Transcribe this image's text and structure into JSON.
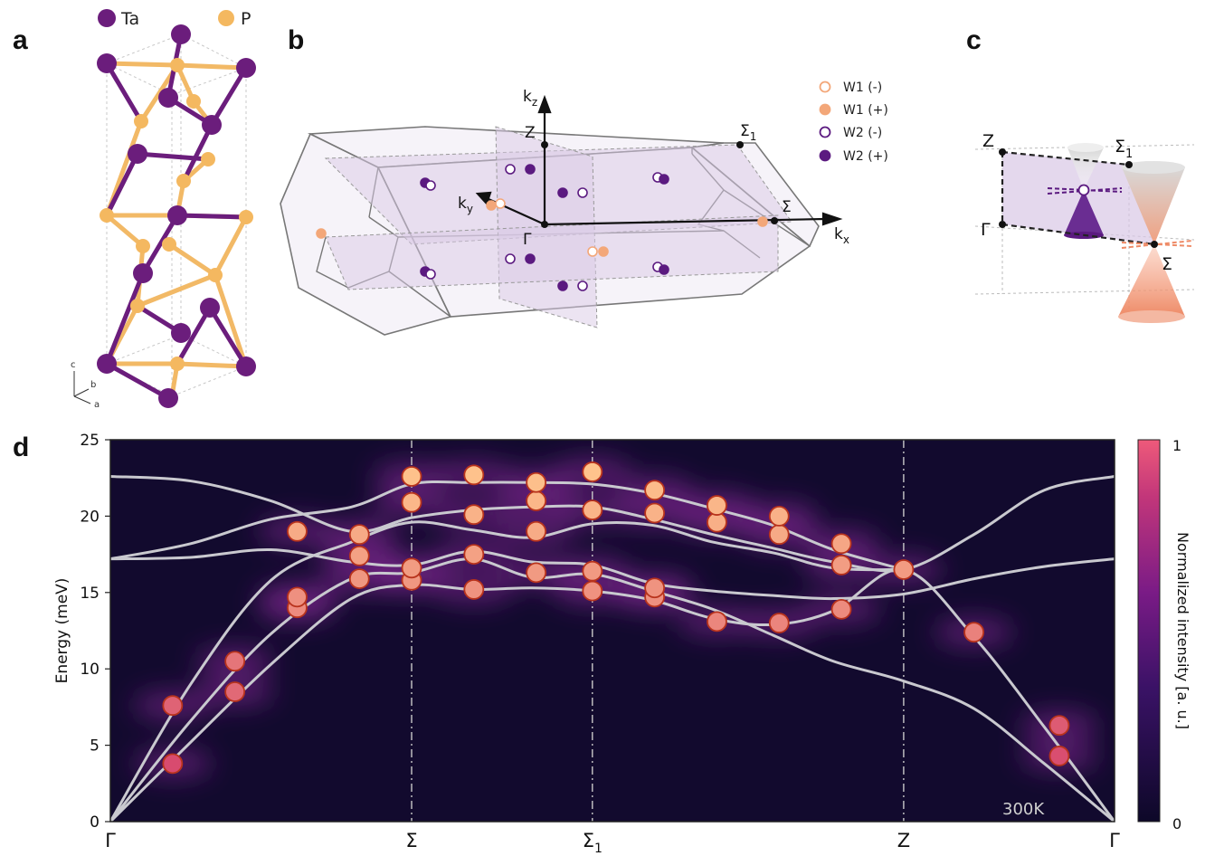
{
  "panel_labels": {
    "a": "a",
    "b": "b",
    "c": "c",
    "d": "d"
  },
  "panel_a": {
    "legend": [
      {
        "label": "Ta",
        "color": "#6b1d7c"
      },
      {
        "label": "P",
        "color": "#f4b860"
      }
    ],
    "axes": {
      "c": "c",
      "b": "b",
      "a": "a"
    }
  },
  "panel_b": {
    "labels": {
      "kz": "k",
      "kz_sub": "z",
      "ky": "k",
      "ky_sub": "y",
      "kx": "k",
      "kx_sub": "x",
      "Z": "Z",
      "Gamma": "Γ",
      "Sigma": "Σ",
      "Sigma1": "Σ",
      "Sigma1_sub": "1"
    },
    "legend": [
      {
        "label": "W1 (-)",
        "style": "open",
        "color": "#f3a779"
      },
      {
        "label": "W1 (+)",
        "style": "filled",
        "color": "#f3a779"
      },
      {
        "label": "W2 (-)",
        "style": "open",
        "color": "#5b1a80"
      },
      {
        "label": "W2 (+)",
        "style": "filled",
        "color": "#5b1a80"
      }
    ]
  },
  "panel_c": {
    "labels": {
      "Z": "Z",
      "Sigma1": "Σ",
      "Sigma1_sub": "1",
      "Gamma": "Γ",
      "Sigma": "Σ"
    }
  },
  "chart_data": {
    "type": "heatmap",
    "ylabel": "Energy (meV)",
    "ylim": [
      0,
      25
    ],
    "yticks": [
      0,
      5,
      10,
      15,
      20,
      25
    ],
    "xlim": [
      0,
      10
    ],
    "x_high_symmetry": [
      {
        "label": "Γ",
        "x": 0
      },
      {
        "label": "Σ",
        "x": 3
      },
      {
        "label": "Σ",
        "sub": "1",
        "x": 4.8
      },
      {
        "label": "Z",
        "x": 7.9
      },
      {
        "label": "Γ",
        "x": 10
      }
    ],
    "dashed_lines_at": [
      3,
      4.8,
      7.9
    ],
    "colorbar": {
      "label": "Normalized intensity [a. u.]",
      "min": "0",
      "max": "1"
    },
    "annotation": "300K",
    "points": [
      {
        "x": 0.62,
        "y": 3.8
      },
      {
        "x": 0.62,
        "y": 7.6
      },
      {
        "x": 1.24,
        "y": 8.5
      },
      {
        "x": 1.24,
        "y": 10.5
      },
      {
        "x": 1.86,
        "y": 14.0
      },
      {
        "x": 1.86,
        "y": 14.7
      },
      {
        "x": 1.86,
        "y": 19.0
      },
      {
        "x": 2.48,
        "y": 15.9
      },
      {
        "x": 2.48,
        "y": 17.4
      },
      {
        "x": 2.48,
        "y": 18.8
      },
      {
        "x": 3.0,
        "y": 15.8
      },
      {
        "x": 3.0,
        "y": 16.6
      },
      {
        "x": 3.0,
        "y": 20.9
      },
      {
        "x": 3.0,
        "y": 22.6
      },
      {
        "x": 3.62,
        "y": 15.2
      },
      {
        "x": 3.62,
        "y": 17.5
      },
      {
        "x": 3.62,
        "y": 20.1
      },
      {
        "x": 3.62,
        "y": 22.7
      },
      {
        "x": 4.24,
        "y": 16.3
      },
      {
        "x": 4.24,
        "y": 19.0
      },
      {
        "x": 4.24,
        "y": 21.0
      },
      {
        "x": 4.24,
        "y": 22.2
      },
      {
        "x": 4.8,
        "y": 15.1
      },
      {
        "x": 4.8,
        "y": 16.4
      },
      {
        "x": 4.8,
        "y": 20.4
      },
      {
        "x": 4.8,
        "y": 22.9
      },
      {
        "x": 5.42,
        "y": 14.7
      },
      {
        "x": 5.42,
        "y": 15.3
      },
      {
        "x": 5.42,
        "y": 20.2
      },
      {
        "x": 5.42,
        "y": 21.7
      },
      {
        "x": 6.04,
        "y": 13.1
      },
      {
        "x": 6.04,
        "y": 19.6
      },
      {
        "x": 6.04,
        "y": 20.7
      },
      {
        "x": 6.66,
        "y": 13.0
      },
      {
        "x": 6.66,
        "y": 18.8
      },
      {
        "x": 6.66,
        "y": 20.0
      },
      {
        "x": 7.28,
        "y": 13.9
      },
      {
        "x": 7.28,
        "y": 16.8
      },
      {
        "x": 7.28,
        "y": 18.2
      },
      {
        "x": 7.9,
        "y": 16.5
      },
      {
        "x": 8.6,
        "y": 12.4
      },
      {
        "x": 9.45,
        "y": 4.3
      },
      {
        "x": 9.45,
        "y": 6.3
      }
    ],
    "bands": [
      [
        [
          0,
          0
        ],
        [
          0.8,
          5.2
        ],
        [
          1.6,
          10.3
        ],
        [
          2.4,
          14.6
        ],
        [
          3.0,
          15.5
        ],
        [
          3.6,
          15.2
        ],
        [
          4.2,
          15.3
        ],
        [
          4.8,
          15.1
        ],
        [
          5.4,
          14.5
        ],
        [
          6.0,
          13.3
        ],
        [
          6.6,
          12.9
        ],
        [
          7.2,
          13.8
        ],
        [
          7.9,
          16.5
        ],
        [
          8.6,
          12.1
        ],
        [
          9.3,
          6.2
        ],
        [
          10,
          0
        ]
      ],
      [
        [
          0,
          0
        ],
        [
          0.8,
          6.6
        ],
        [
          1.6,
          12.3
        ],
        [
          2.4,
          15.9
        ],
        [
          3.0,
          16.3
        ],
        [
          3.6,
          17.2
        ],
        [
          4.2,
          16.0
        ],
        [
          4.8,
          16.2
        ],
        [
          5.4,
          15.1
        ],
        [
          6.0,
          13.9
        ],
        [
          6.6,
          12.2
        ],
        [
          7.2,
          10.5
        ],
        [
          7.9,
          9.2
        ],
        [
          8.6,
          7.4
        ],
        [
          9.3,
          3.8
        ],
        [
          10,
          0
        ]
      ],
      [
        [
          0,
          0
        ],
        [
          0.8,
          9.0
        ],
        [
          1.6,
          15.8
        ],
        [
          2.4,
          18.3
        ],
        [
          3.0,
          19.6
        ],
        [
          3.6,
          19.1
        ],
        [
          4.2,
          18.6
        ],
        [
          4.8,
          19.5
        ],
        [
          5.4,
          19.4
        ],
        [
          6.0,
          18.3
        ],
        [
          6.6,
          17.6
        ],
        [
          7.2,
          16.6
        ],
        [
          7.9,
          16.5
        ]
      ],
      [
        [
          0,
          17.2
        ],
        [
          0.8,
          17.3
        ],
        [
          1.6,
          17.8
        ],
        [
          2.4,
          17.0
        ],
        [
          3.0,
          16.8
        ],
        [
          3.6,
          17.7
        ],
        [
          4.2,
          17.0
        ],
        [
          4.8,
          16.8
        ],
        [
          5.4,
          15.6
        ],
        [
          6.0,
          15.1
        ],
        [
          6.6,
          14.8
        ],
        [
          7.2,
          14.6
        ],
        [
          7.9,
          14.9
        ],
        [
          8.6,
          15.9
        ],
        [
          9.3,
          16.7
        ],
        [
          10,
          17.2
        ]
      ],
      [
        [
          0,
          22.6
        ],
        [
          0.8,
          22.3
        ],
        [
          1.6,
          21.0
        ],
        [
          2.4,
          19.0
        ],
        [
          3.0,
          19.9
        ],
        [
          3.6,
          20.4
        ],
        [
          4.2,
          20.6
        ],
        [
          4.8,
          20.6
        ],
        [
          5.4,
          19.8
        ],
        [
          6.0,
          18.8
        ],
        [
          6.6,
          17.9
        ],
        [
          7.2,
          17.0
        ],
        [
          7.9,
          16.5
        ],
        [
          8.6,
          18.8
        ],
        [
          9.3,
          21.7
        ],
        [
          10,
          22.6
        ]
      ],
      [
        [
          0,
          17.2
        ],
        [
          0.8,
          18.2
        ],
        [
          1.6,
          19.8
        ],
        [
          2.4,
          20.6
        ],
        [
          3.0,
          22.1
        ],
        [
          3.6,
          22.2
        ],
        [
          4.2,
          22.2
        ],
        [
          4.8,
          22.1
        ],
        [
          5.4,
          21.5
        ],
        [
          6.0,
          20.5
        ],
        [
          6.6,
          19.4
        ],
        [
          7.2,
          17.8
        ],
        [
          7.9,
          16.5
        ]
      ]
    ]
  }
}
